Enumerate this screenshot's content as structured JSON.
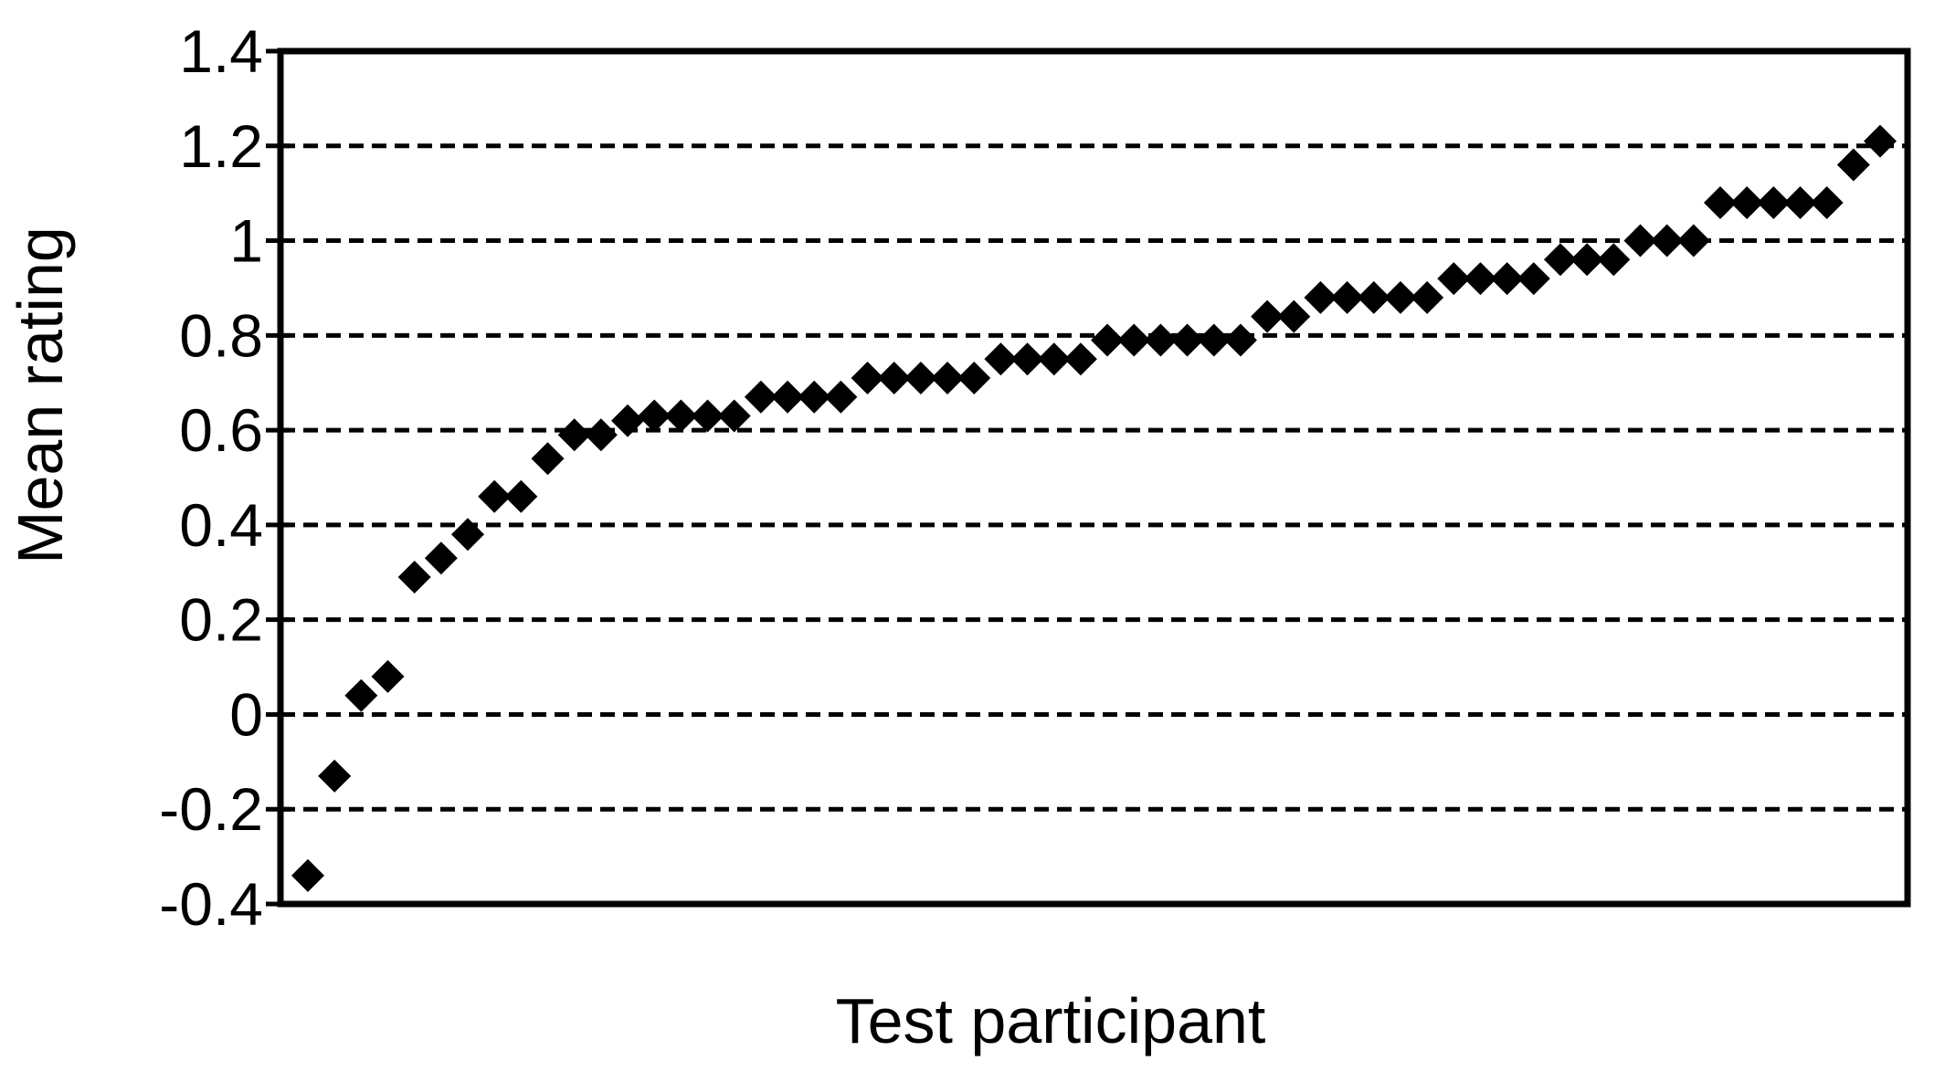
{
  "figure": {
    "background_color": "#ffffff",
    "ink_color": "#000000"
  },
  "chart_data": {
    "type": "scatter",
    "title": "",
    "xlabel": "Test participant",
    "ylabel": "Mean rating",
    "marker": "diamond",
    "marker_color": "#000000",
    "grid": "horizontal-dashed",
    "legend": "none",
    "ylim": [
      -0.4,
      1.4
    ],
    "ytick_step": 0.2,
    "ytick_labels_top_to_bottom": [
      "1.4",
      "1.2",
      "1",
      "0.8",
      "0.6",
      "0.4",
      "0.2",
      "0",
      "-0.2",
      "-0.4"
    ],
    "x_axis_tick_labels_visible": false,
    "x": [
      1,
      2,
      3,
      4,
      5,
      6,
      7,
      8,
      9,
      10,
      11,
      12,
      13,
      14,
      15,
      16,
      17,
      18,
      19,
      20,
      21,
      22,
      23,
      24,
      25,
      26,
      27,
      28,
      29,
      30,
      31,
      32,
      33,
      34,
      35,
      36,
      37,
      38,
      39,
      40,
      41,
      42,
      43,
      44,
      45,
      46,
      47,
      48,
      49,
      50,
      51,
      52,
      53,
      54,
      55,
      56,
      57,
      58,
      59,
      60
    ],
    "y": [
      -0.34,
      -0.13,
      0.04,
      0.08,
      0.29,
      0.33,
      0.38,
      0.46,
      0.46,
      0.54,
      0.59,
      0.59,
      0.62,
      0.63,
      0.63,
      0.63,
      0.63,
      0.67,
      0.67,
      0.67,
      0.67,
      0.71,
      0.71,
      0.71,
      0.71,
      0.71,
      0.75,
      0.75,
      0.75,
      0.75,
      0.79,
      0.79,
      0.79,
      0.79,
      0.79,
      0.79,
      0.84,
      0.84,
      0.88,
      0.88,
      0.88,
      0.88,
      0.88,
      0.92,
      0.92,
      0.92,
      0.92,
      0.96,
      0.96,
      0.96,
      1.0,
      1.0,
      1.0,
      1.08,
      1.08,
      1.08,
      1.08,
      1.08,
      1.16,
      1.21
    ]
  }
}
